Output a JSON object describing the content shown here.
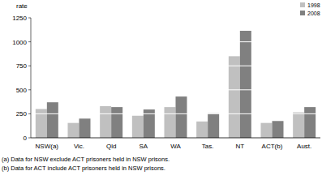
{
  "chart_data": {
    "type": "bar",
    "y_label": "rate",
    "categories": [
      "NSW(a)",
      "Vic.",
      "Qld",
      "SA",
      "WA",
      "Tas.",
      "NT",
      "ACT(b)",
      "Aust."
    ],
    "series": [
      {
        "name": "1998",
        "color": "#c0c0c0",
        "values": [
          300,
          155,
          330,
          230,
          320,
          170,
          850,
          155,
          265
        ]
      },
      {
        "name": "2008",
        "color": "#808080",
        "values": [
          370,
          200,
          320,
          295,
          430,
          255,
          1115,
          175,
          320
        ]
      }
    ],
    "ylim": [
      0,
      1250
    ],
    "yticks": [
      0,
      250,
      500,
      750,
      1000,
      1250
    ],
    "grid": true,
    "legend": "top-right",
    "notes": [
      "(a) Data for NSW exclude ACT prisoners held in NSW prisons.",
      "(b) Data for ACT include ACT prisoners held in NSW prisons."
    ]
  }
}
